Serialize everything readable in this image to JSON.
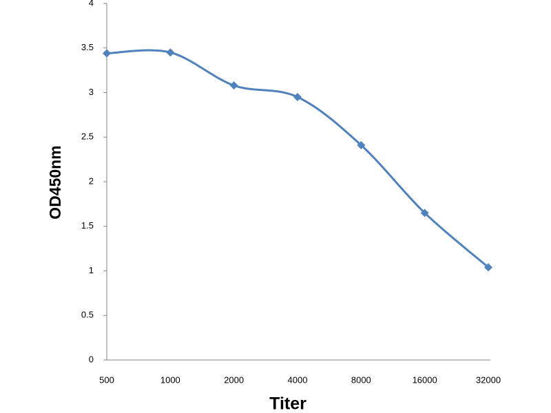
{
  "chart_data": {
    "type": "line",
    "x_label": "Titer",
    "y_label": "OD450nm",
    "categories": [
      "500",
      "1000",
      "2000",
      "4000",
      "8000",
      "16000",
      "32000"
    ],
    "values": [
      3.44,
      3.45,
      3.08,
      2.95,
      2.41,
      1.65,
      1.04
    ],
    "color": "#4f81bd",
    "smooth": true,
    "grid": false,
    "ylim": [
      0,
      4
    ],
    "yticks": [
      0,
      0.5,
      1,
      1.5,
      2,
      2.5,
      3,
      3.5,
      4
    ]
  }
}
